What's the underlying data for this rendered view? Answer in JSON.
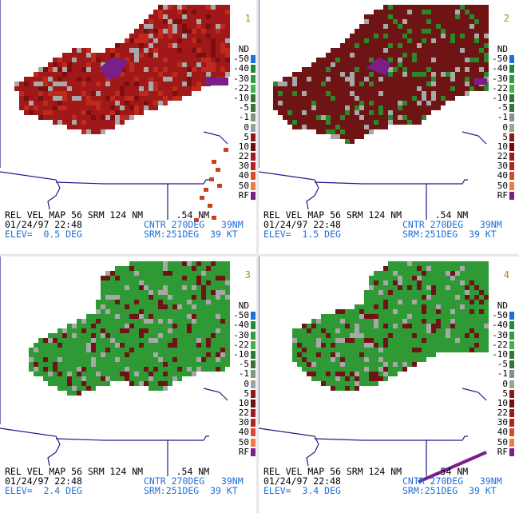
{
  "legend": {
    "items": [
      {
        "label": "ND",
        "color": "#ffffff"
      },
      {
        "label": "-50",
        "color": "#1e6fd8"
      },
      {
        "label": "-40",
        "color": "#1f8a3a"
      },
      {
        "label": "-30",
        "color": "#2e9e3e"
      },
      {
        "label": "-22",
        "color": "#43b347"
      },
      {
        "label": "-10",
        "color": "#2f7a2f"
      },
      {
        "label": "-5",
        "color": "#3f6f3f"
      },
      {
        "label": "-1",
        "color": "#7a9a7a"
      },
      {
        "label": "0",
        "color": "#a0a0a0"
      },
      {
        "label": "5",
        "color": "#8b1a1a"
      },
      {
        "label": "10",
        "color": "#6e0f0f"
      },
      {
        "label": "22",
        "color": "#9a1c1c"
      },
      {
        "label": "30",
        "color": "#b22222"
      },
      {
        "label": "40",
        "color": "#d84a2a"
      },
      {
        "label": "50",
        "color": "#f07a40"
      },
      {
        "label": "RF",
        "color": "#7a1f8a"
      }
    ]
  },
  "panels": [
    {
      "number": "1",
      "line1": "REL VEL MAP 56 SRM 124 NM      .54 NM",
      "line2a": "01/24/97 22:48",
      "line2b": "CNTR 270DEG   39NM",
      "line3a": "ELEV=  0.5 DEG",
      "line3b": "SRM:251DEG  39 KT",
      "dominant": "#a11818",
      "secondary": "#7a0f0f"
    },
    {
      "number": "2",
      "line1": "REL VEL MAP 56 SRM 124 NM      .54 NM",
      "line2a": "01/24/97 22:48",
      "line2b": "CNTR 270DEG   39NM",
      "line3a": "ELEV=  1.5 DEG",
      "line3b": "SRM:251DEG  39 KT",
      "dominant": "#6e1414",
      "secondary": "#2a8a2a"
    },
    {
      "number": "3",
      "line1": "REL VEL MAP 56 SRM 124 NM      .54 NM",
      "line2a": "01/24/97 22:48",
      "line2b": "CNTR 270DEG   39NM",
      "line3a": "ELEV=  2.4 DEG",
      "line3b": "SRM:251DEG  39 KT",
      "dominant": "#2f9a35",
      "secondary": "#6e1414"
    },
    {
      "number": "4",
      "line1": "REL VEL MAP 56 SRM 124 NM      .54 NM",
      "line2a": "01/24/97 22:48",
      "line2b": "CNTR 270DEG   39NM",
      "line3a": "ELEV=  3.4 DEG",
      "line3b": "SRM:251DEG  39 KT",
      "dominant": "#2f9a35",
      "secondary": "#6e1414"
    }
  ],
  "colors": {
    "boundary": "#1a1a8a",
    "purple": "#7a1f8a",
    "gray": "#a8a8a8"
  }
}
